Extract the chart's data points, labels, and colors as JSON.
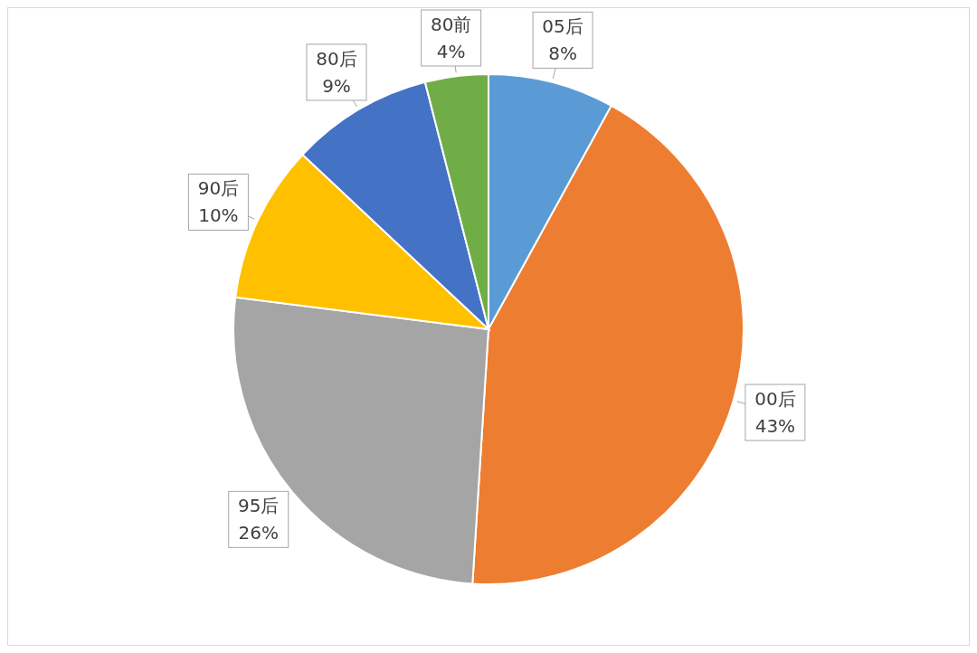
{
  "chart_data": {
    "type": "pie",
    "categories": [
      "05后",
      "00后",
      "95后",
      "90后",
      "80后",
      "80前"
    ],
    "values": [
      8,
      43,
      26,
      10,
      9,
      4
    ],
    "value_labels": [
      "8%",
      "43%",
      "26%",
      "10%",
      "9%",
      "4%"
    ],
    "colors": [
      "#5b9bd5",
      "#ed7d31",
      "#a5a5a5",
      "#ffc000",
      "#4472c4",
      "#70ad47"
    ],
    "legend": false
  }
}
